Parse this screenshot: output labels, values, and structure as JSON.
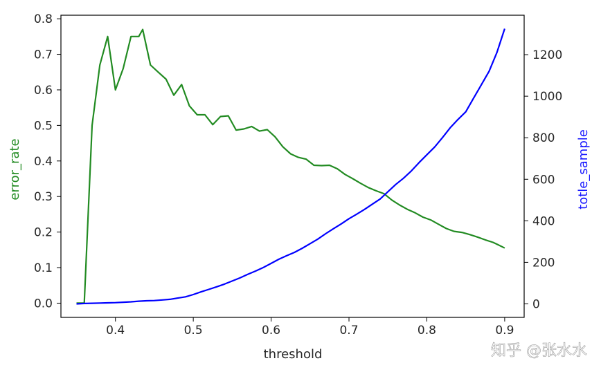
{
  "chart_data": {
    "type": "line",
    "xlabel": "threshold",
    "ylabel_left": "error_rate",
    "ylabel_right": "totle_sample",
    "xlim": [
      0.33,
      0.925
    ],
    "ylim_left": [
      -0.04,
      0.81
    ],
    "ylim_right": [
      -65,
      1390
    ],
    "x_ticks": [
      "0.4",
      "0.5",
      "0.6",
      "0.7",
      "0.8",
      "0.9"
    ],
    "y_left_ticks": [
      "0.0",
      "0.1",
      "0.2",
      "0.3",
      "0.4",
      "0.5",
      "0.6",
      "0.7",
      "0.8"
    ],
    "y_right_ticks": [
      "0",
      "200",
      "400",
      "600",
      "800",
      "1000",
      "1200"
    ],
    "grid": false,
    "series": [
      {
        "axis": "left",
        "color": "#228b22",
        "points": [
          [
            0.35,
            0.0
          ],
          [
            0.36,
            0.0
          ],
          [
            0.37,
            0.5
          ],
          [
            0.38,
            0.67
          ],
          [
            0.39,
            0.75
          ],
          [
            0.4,
            0.6
          ],
          [
            0.41,
            0.66
          ],
          [
            0.42,
            0.75
          ],
          [
            0.43,
            0.75
          ],
          [
            0.435,
            0.77
          ],
          [
            0.445,
            0.67
          ],
          [
            0.455,
            0.65
          ],
          [
            0.465,
            0.63
          ],
          [
            0.475,
            0.585
          ],
          [
            0.485,
            0.615
          ],
          [
            0.495,
            0.555
          ],
          [
            0.505,
            0.53
          ],
          [
            0.515,
            0.53
          ],
          [
            0.525,
            0.502
          ],
          [
            0.535,
            0.525
          ],
          [
            0.545,
            0.527
          ],
          [
            0.555,
            0.487
          ],
          [
            0.565,
            0.49
          ],
          [
            0.575,
            0.497
          ],
          [
            0.585,
            0.484
          ],
          [
            0.595,
            0.488
          ],
          [
            0.605,
            0.468
          ],
          [
            0.615,
            0.44
          ],
          [
            0.625,
            0.42
          ],
          [
            0.635,
            0.41
          ],
          [
            0.645,
            0.405
          ],
          [
            0.655,
            0.388
          ],
          [
            0.665,
            0.387
          ],
          [
            0.675,
            0.388
          ],
          [
            0.685,
            0.378
          ],
          [
            0.695,
            0.362
          ],
          [
            0.705,
            0.35
          ],
          [
            0.715,
            0.337
          ],
          [
            0.725,
            0.325
          ],
          [
            0.735,
            0.316
          ],
          [
            0.745,
            0.308
          ],
          [
            0.755,
            0.29
          ],
          [
            0.765,
            0.276
          ],
          [
            0.775,
            0.264
          ],
          [
            0.785,
            0.254
          ],
          [
            0.795,
            0.242
          ],
          [
            0.805,
            0.234
          ],
          [
            0.815,
            0.222
          ],
          [
            0.825,
            0.21
          ],
          [
            0.835,
            0.202
          ],
          [
            0.845,
            0.199
          ],
          [
            0.855,
            0.193
          ],
          [
            0.865,
            0.186
          ],
          [
            0.875,
            0.178
          ],
          [
            0.885,
            0.171
          ],
          [
            0.89,
            0.166
          ],
          [
            0.9,
            0.155
          ]
        ]
      },
      {
        "axis": "right",
        "color": "#0000ff",
        "points": [
          [
            0.35,
            0
          ],
          [
            0.36,
            2
          ],
          [
            0.37,
            3
          ],
          [
            0.38,
            4
          ],
          [
            0.39,
            5
          ],
          [
            0.4,
            6
          ],
          [
            0.41,
            8
          ],
          [
            0.42,
            10
          ],
          [
            0.43,
            13
          ],
          [
            0.44,
            15
          ],
          [
            0.45,
            16
          ],
          [
            0.46,
            19
          ],
          [
            0.47,
            22
          ],
          [
            0.48,
            28
          ],
          [
            0.49,
            34
          ],
          [
            0.5,
            45
          ],
          [
            0.51,
            58
          ],
          [
            0.52,
            70
          ],
          [
            0.53,
            82
          ],
          [
            0.54,
            95
          ],
          [
            0.55,
            110
          ],
          [
            0.56,
            125
          ],
          [
            0.57,
            142
          ],
          [
            0.58,
            158
          ],
          [
            0.59,
            175
          ],
          [
            0.6,
            195
          ],
          [
            0.61,
            215
          ],
          [
            0.62,
            232
          ],
          [
            0.63,
            248
          ],
          [
            0.64,
            268
          ],
          [
            0.65,
            290
          ],
          [
            0.66,
            312
          ],
          [
            0.67,
            338
          ],
          [
            0.68,
            362
          ],
          [
            0.69,
            385
          ],
          [
            0.7,
            410
          ],
          [
            0.71,
            432
          ],
          [
            0.72,
            455
          ],
          [
            0.73,
            480
          ],
          [
            0.74,
            505
          ],
          [
            0.75,
            540
          ],
          [
            0.76,
            575
          ],
          [
            0.77,
            605
          ],
          [
            0.78,
            640
          ],
          [
            0.79,
            680
          ],
          [
            0.8,
            718
          ],
          [
            0.81,
            755
          ],
          [
            0.82,
            800
          ],
          [
            0.83,
            848
          ],
          [
            0.84,
            888
          ],
          [
            0.85,
            925
          ],
          [
            0.86,
            990
          ],
          [
            0.87,
            1055
          ],
          [
            0.88,
            1120
          ],
          [
            0.89,
            1210
          ],
          [
            0.9,
            1325
          ]
        ]
      }
    ]
  },
  "watermark": "知乎 @张水水"
}
